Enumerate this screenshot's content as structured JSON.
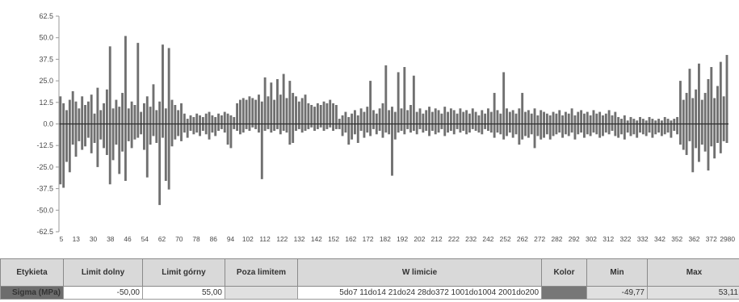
{
  "chart_data": {
    "type": "bar",
    "y_ticks": [
      "62.5",
      "50.0",
      "37.5",
      "25.0",
      "12.5",
      "0.0",
      "-12.5",
      "-25.0",
      "-37.5",
      "-50.0",
      "-62.5"
    ],
    "ylim": [
      -62.5,
      62.5
    ],
    "x_ticks": [
      "5",
      "13",
      "30",
      "38",
      "46",
      "54",
      "62",
      "70",
      "78",
      "86",
      "94",
      "102",
      "112",
      "122",
      "132",
      "142",
      "152",
      "162",
      "172",
      "182",
      "192",
      "202",
      "212",
      "222",
      "232",
      "242",
      "252",
      "262",
      "272",
      "282",
      "292",
      "302",
      "312",
      "322",
      "332",
      "342",
      "352",
      "362",
      "372",
      "2980"
    ],
    "series": [
      {
        "values_max": [
          16,
          12,
          8,
          14,
          19,
          13,
          9,
          16,
          11,
          13,
          17,
          6,
          21,
          8,
          12,
          20,
          45,
          9,
          14,
          10,
          18,
          51,
          9,
          13,
          11,
          47,
          7,
          12,
          16,
          10,
          23,
          8,
          13,
          46,
          9,
          44,
          14,
          11,
          8,
          12,
          6,
          3,
          5,
          4,
          6,
          5,
          4,
          6,
          7,
          5,
          4,
          6,
          5,
          7,
          6,
          5,
          4,
          12,
          14,
          15,
          14,
          16,
          15,
          14,
          17,
          13,
          27,
          16,
          24,
          14,
          26,
          17,
          29,
          15,
          25,
          18,
          16,
          13,
          15,
          17,
          12,
          11,
          10,
          12,
          11,
          13,
          12,
          14,
          12,
          11,
          3,
          5,
          7,
          4,
          6,
          8,
          5,
          9,
          7,
          10,
          25,
          8,
          6,
          9,
          12,
          34,
          8,
          10,
          7,
          30,
          9,
          33,
          8,
          11,
          28,
          7,
          9,
          6,
          8,
          10,
          7,
          9,
          8,
          6,
          10,
          7,
          9,
          8,
          6,
          9,
          7,
          8,
          6,
          9,
          7,
          5,
          8,
          6,
          9,
          7,
          18,
          8,
          6,
          30,
          9,
          7,
          8,
          6,
          9,
          18,
          7,
          8,
          6,
          9,
          5,
          8,
          7,
          6,
          5,
          7,
          6,
          8,
          5,
          7,
          6,
          9,
          5,
          7,
          8,
          6,
          7,
          5,
          8,
          6,
          7,
          5,
          6,
          8,
          5,
          7,
          4,
          3,
          5,
          2,
          4,
          3,
          2,
          4,
          3,
          2,
          4,
          3,
          2,
          3,
          2,
          4,
          3,
          2,
          3,
          4,
          25,
          14,
          18,
          32,
          15,
          20,
          35,
          14,
          18,
          26,
          33,
          15,
          22,
          36,
          16,
          40
        ],
        "values_min": [
          -35,
          -37,
          -22,
          -28,
          -12,
          -19,
          -10,
          -15,
          -13,
          -8,
          -17,
          -11,
          -25,
          -9,
          -14,
          -18,
          -35,
          -21,
          -12,
          -29,
          -16,
          -33,
          -10,
          -14,
          -9,
          -8,
          -6,
          -15,
          -31,
          -12,
          -7,
          -11,
          -47,
          -8,
          -33,
          -38,
          -13,
          -9,
          -7,
          -10,
          -5,
          -8,
          -4,
          -6,
          -5,
          -7,
          -4,
          -6,
          -9,
          -5,
          -7,
          -4,
          -3,
          -5,
          -12,
          -14,
          -3,
          -4,
          -6,
          -5,
          -3,
          -4,
          -2,
          -3,
          -5,
          -32,
          -4,
          -3,
          -5,
          -4,
          -3,
          -6,
          -4,
          -5,
          -12,
          -11,
          -4,
          -3,
          -5,
          -4,
          -3,
          -2,
          -4,
          -3,
          -2,
          -4,
          -3,
          -2,
          -4,
          -3,
          -3,
          -7,
          -5,
          -12,
          -9,
          -6,
          -11,
          -4,
          -8,
          -5,
          -7,
          -3,
          -6,
          -4,
          -8,
          -5,
          -6,
          -30,
          -9,
          -5,
          -4,
          -6,
          -3,
          -5,
          -4,
          -6,
          -3,
          -5,
          -4,
          -7,
          -4,
          -6,
          -5,
          -3,
          -7,
          -5,
          -4,
          -6,
          -3,
          -5,
          -4,
          -6,
          -5,
          -3,
          -4,
          -5,
          -6,
          -3,
          -4,
          -5,
          -8,
          -5,
          -6,
          -9,
          -7,
          -5,
          -8,
          -6,
          -12,
          -9,
          -7,
          -8,
          -6,
          -14,
          -7,
          -9,
          -8,
          -6,
          -9,
          -7,
          -6,
          -5,
          -8,
          -6,
          -7,
          -5,
          -9,
          -6,
          -5,
          -8,
          -6,
          -7,
          -5,
          -6,
          -8,
          -7,
          -5,
          -6,
          -4,
          -7,
          -8,
          -6,
          -9,
          -5,
          -7,
          -6,
          -8,
          -5,
          -6,
          -7,
          -5,
          -8,
          -6,
          -5,
          -7,
          -6,
          -5,
          -8,
          -4,
          -6,
          -12,
          -15,
          -18,
          -10,
          -28,
          -14,
          -22,
          -12,
          -16,
          -27,
          -13,
          -20,
          -11,
          -17,
          -10,
          -11
        ]
      }
    ]
  },
  "table": {
    "headers": [
      "Etykieta",
      "Limit dolny",
      "Limit górny",
      "Poza limitem",
      "W limicie",
      "Kolor",
      "Min",
      "Max"
    ],
    "row": {
      "label": "Sigma (MPa)",
      "limit_dolny": "-50,00",
      "limit_gorny": "55,00",
      "poza_limitem": "",
      "w_limicie": "5do7 11do14 21do24 28do372 1001do1004 2001do200",
      "kolor": "#777777",
      "min": "-49,77",
      "max": "53,11"
    }
  }
}
